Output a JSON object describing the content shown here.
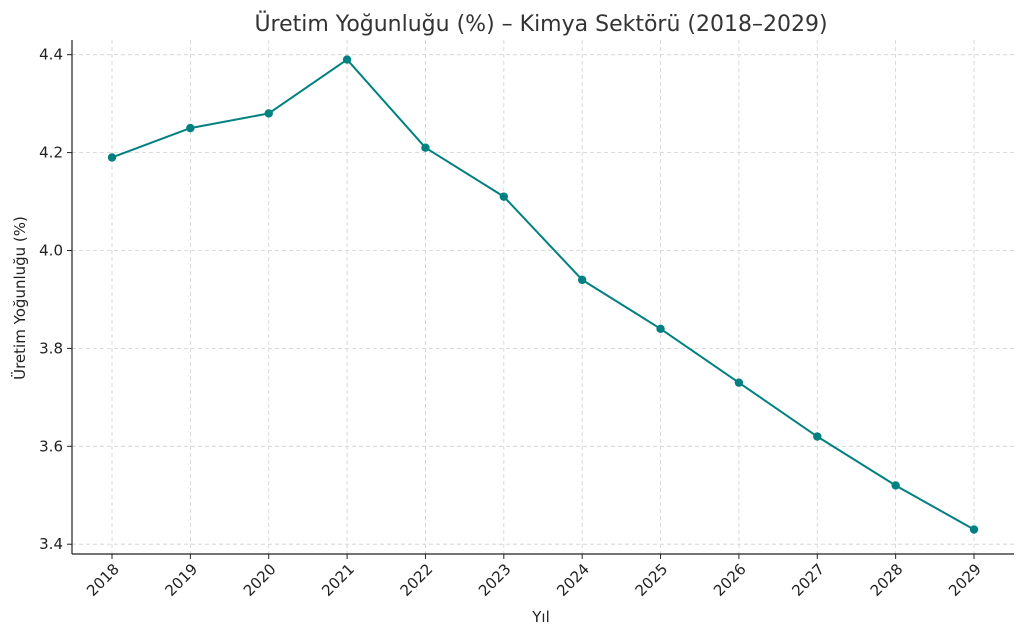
{
  "chart_data": {
    "type": "line",
    "title": "Üretim Yoğunluğu (%) – Kimya Sektörü (2018–2029)",
    "xlabel": "Yıl",
    "ylabel": "Üretim Yoğunluğu (%)",
    "x": [
      "2018",
      "2019",
      "2020",
      "2021",
      "2022",
      "2023",
      "2024",
      "2025",
      "2026",
      "2027",
      "2028",
      "2029"
    ],
    "series": [
      {
        "values": [
          4.19,
          4.25,
          4.28,
          4.39,
          4.21,
          4.11,
          3.94,
          3.84,
          3.73,
          3.62,
          3.52,
          3.43
        ]
      }
    ],
    "ylim": [
      3.38,
      4.43
    ],
    "yticks": [
      3.4,
      3.6,
      3.8,
      4.0,
      4.2,
      4.4
    ],
    "ytick_labels": [
      "3.4",
      "3.6",
      "3.8",
      "4.0",
      "4.2",
      "4.4"
    ],
    "grid": true,
    "legend": "none",
    "colors": {
      "line": "#008080"
    }
  }
}
